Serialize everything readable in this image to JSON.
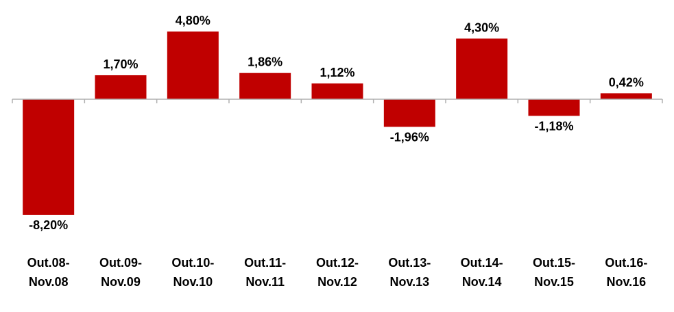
{
  "chart_data": {
    "type": "bar",
    "categories": [
      [
        "Out.08-",
        "Nov.08"
      ],
      [
        "Out.09-",
        "Nov.09"
      ],
      [
        "Out.10-",
        "Nov.10"
      ],
      [
        "Out.11-",
        "Nov.11"
      ],
      [
        "Out.12-",
        "Nov.12"
      ],
      [
        "Out.13-",
        "Nov.13"
      ],
      [
        "Out.14-",
        "Nov.14"
      ],
      [
        "Out.15-",
        "Nov.15"
      ],
      [
        "Out.16-",
        "Nov.16"
      ]
    ],
    "values": [
      -8.2,
      1.7,
      4.8,
      1.86,
      1.12,
      -1.96,
      4.3,
      -1.18,
      0.42
    ],
    "data_labels": [
      "-8,20%",
      "1,70%",
      "4,80%",
      "1,86%",
      "1,12%",
      "-1,96%",
      "4,30%",
      "-1,18%",
      "0,42%"
    ],
    "title": "",
    "xlabel": "",
    "ylabel": "",
    "ylim": [
      -8.2,
      4.8
    ],
    "grid": false,
    "legend": "none",
    "bar_color": "#c00000",
    "axis_color": "#b0b0b0"
  }
}
